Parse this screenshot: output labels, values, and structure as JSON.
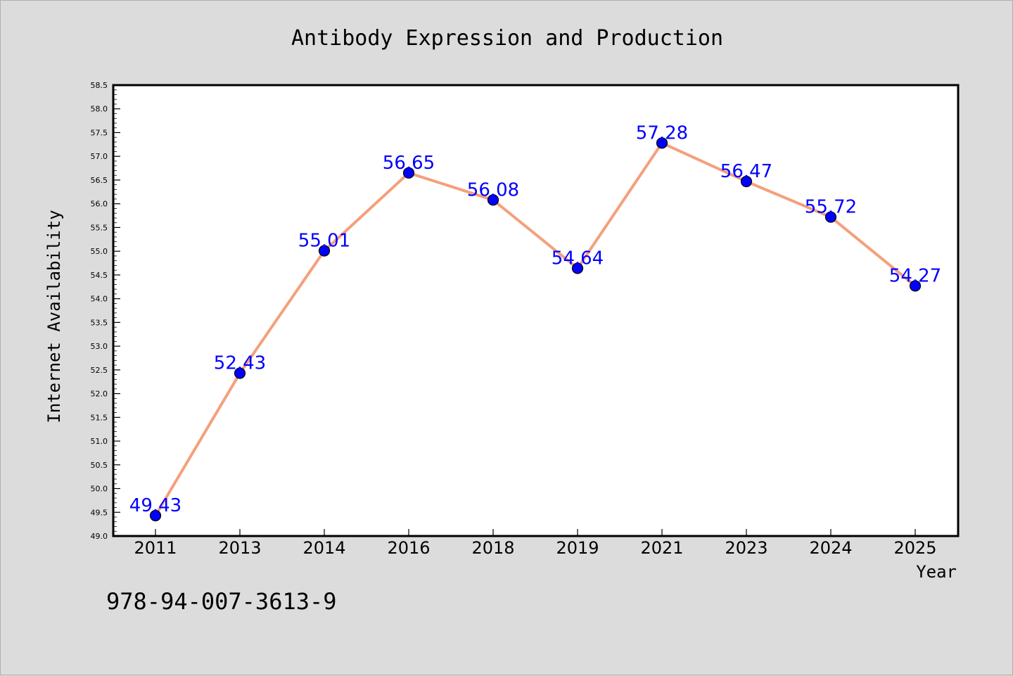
{
  "chart_data": {
    "type": "line",
    "title": "Antibody Expression and Production",
    "xlabel": "Year",
    "ylabel": "Internet Availability",
    "categories": [
      "2011",
      "2013",
      "2014",
      "2016",
      "2018",
      "2019",
      "2021",
      "2023",
      "2024",
      "2025"
    ],
    "series": [
      {
        "values": [
          49.43,
          52.43,
          55.01,
          56.65,
          56.08,
          54.64,
          57.28,
          56.47,
          55.72,
          54.27
        ],
        "line_color": "#f4a07c",
        "marker_color": "#0000ff"
      }
    ],
    "data_labels": [
      "49.43",
      "52.43",
      "55.01",
      "56.65",
      "56.08",
      "54.64",
      "57.28",
      "56.47",
      "55.72",
      "54.27"
    ],
    "ylim": [
      49.0,
      58.5
    ],
    "yticks": [
      "49.0",
      "49.5",
      "50.0",
      "50.5",
      "51.0",
      "51.5",
      "52.0",
      "52.5",
      "53.0",
      "53.5",
      "54.0",
      "54.5",
      "55.0",
      "55.5",
      "56.0",
      "56.5",
      "57.0",
      "57.5",
      "58.0",
      "58.5"
    ],
    "grid": false,
    "legend": "none"
  },
  "footer": {
    "isbn": "978-94-007-3613-9"
  },
  "colors": {
    "background": "#dcdcdc",
    "plot_background": "#ffffff",
    "line": "#f4a07c",
    "marker": "#0000ff",
    "label": "#0000ff"
  }
}
